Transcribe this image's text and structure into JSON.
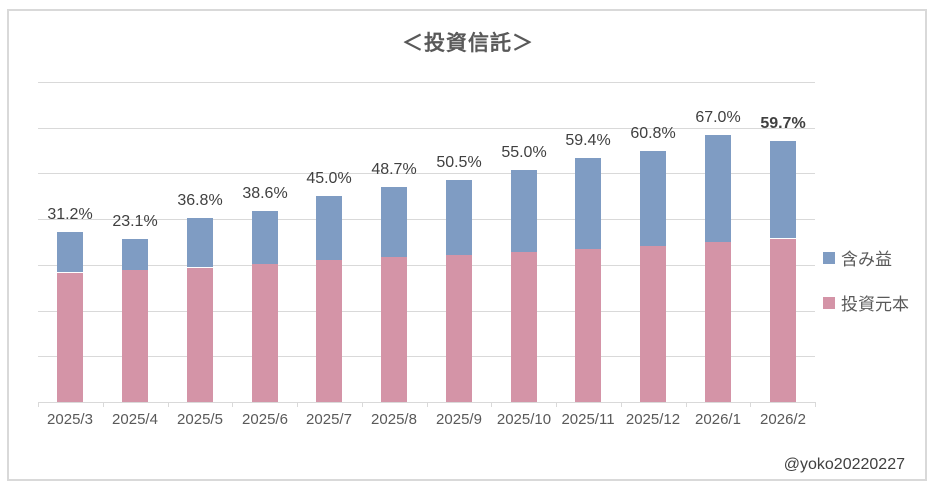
{
  "chart_data": {
    "type": "bar",
    "variant": "stacked",
    "title": "＜投資信託＞",
    "categories": [
      "2025/3",
      "2025/4",
      "2025/5",
      "2025/6",
      "2025/7",
      "2025/8",
      "2025/9",
      "2025/10",
      "2025/11",
      "2025/12",
      "2026/1",
      "2026/2"
    ],
    "series": [
      {
        "name": "投資元本",
        "color": "#d494a7",
        "values": [
          2.83,
          2.9,
          2.94,
          3.01,
          3.1,
          3.17,
          3.22,
          3.28,
          3.35,
          3.41,
          3.49,
          3.57
        ]
      },
      {
        "name": "含み益",
        "color": "#7f9cc3",
        "values": [
          0.88,
          0.67,
          1.08,
          1.16,
          1.4,
          1.54,
          1.63,
          1.8,
          1.99,
          2.07,
          2.34,
          2.13
        ]
      }
    ],
    "data_labels": [
      "31.2%",
      "23.1%",
      "36.8%",
      "38.6%",
      "45.0%",
      "48.7%",
      "50.5%",
      "55.0%",
      "59.4%",
      "60.8%",
      "67.0%",
      "59.7%"
    ],
    "last_label_bold": true,
    "ylim": [
      0,
      7
    ],
    "y_axis_tick_labels_visible": false,
    "grid": true,
    "gridline_color": "#d9d9d9",
    "legend": {
      "position": "right",
      "entries": [
        {
          "label": "含み益",
          "color": "#7f9cc3"
        },
        {
          "label": "投資元本",
          "color": "#d494a7"
        }
      ]
    }
  },
  "attribution": "@yoko20220227"
}
